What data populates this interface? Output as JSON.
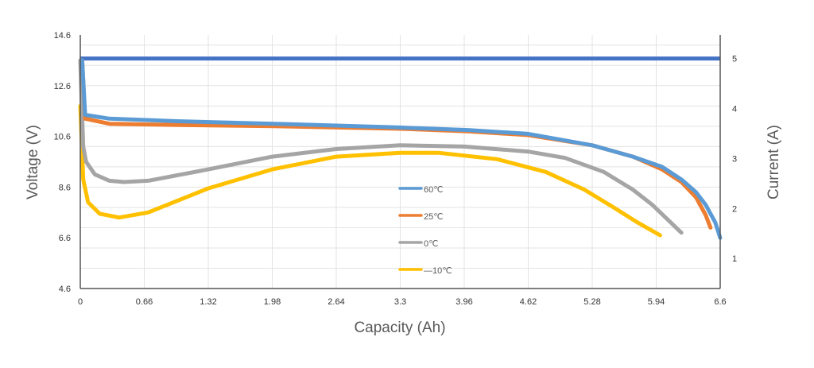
{
  "chart_data": {
    "type": "line",
    "xlabel": "Capacity (Ah)",
    "ylabel": "Voltage (V)",
    "y2label": "Current (A)",
    "xlim": [
      0,
      6.6
    ],
    "ylim": [
      4.6,
      14.6
    ],
    "y2lim": [
      0.4,
      5.47
    ],
    "xticks": [
      "0",
      "0.66",
      "1.32",
      "1.98",
      "2.64",
      "3.3",
      "3.96",
      "4.62",
      "5.28",
      "5.94",
      "6.6"
    ],
    "yticks": [
      "4.6",
      "6.6",
      "8.6",
      "10.6",
      "12.6",
      "14.6"
    ],
    "y2ticks": [
      "1",
      "2",
      "3",
      "4",
      "5"
    ],
    "grid": true,
    "legend_placement": "center",
    "current_line": {
      "color": "#4472C4",
      "x": [
        0,
        6.6
      ],
      "y": [
        5,
        5
      ]
    },
    "series": [
      {
        "name": "60℃",
        "color": "#5B9BD5",
        "x": [
          0.02,
          0.05,
          0.3,
          1.0,
          2.0,
          3.3,
          4.0,
          4.62,
          5.28,
          5.7,
          6.0,
          6.2,
          6.35,
          6.45,
          6.55,
          6.6
        ],
        "y": [
          13.6,
          11.45,
          11.3,
          11.2,
          11.1,
          10.95,
          10.85,
          10.7,
          10.25,
          9.8,
          9.4,
          8.9,
          8.4,
          7.9,
          7.2,
          6.6
        ]
      },
      {
        "name": "25℃",
        "color": "#ED7D31",
        "x": [
          0.02,
          0.05,
          0.3,
          1.0,
          2.0,
          3.3,
          4.0,
          4.62,
          5.28,
          5.7,
          6.0,
          6.2,
          6.35,
          6.45,
          6.5
        ],
        "y": [
          13.6,
          11.3,
          11.1,
          11.05,
          11.0,
          10.9,
          10.8,
          10.65,
          10.25,
          9.8,
          9.3,
          8.8,
          8.2,
          7.5,
          7.0
        ]
      },
      {
        "name": "0℃",
        "color": "#A5A5A5",
        "x": [
          0.0,
          0.03,
          0.06,
          0.15,
          0.3,
          0.45,
          0.7,
          1.32,
          1.98,
          2.64,
          3.3,
          3.96,
          4.62,
          5.0,
          5.4,
          5.7,
          5.9,
          6.2
        ],
        "y": [
          13.6,
          10.2,
          9.6,
          9.1,
          8.85,
          8.8,
          8.85,
          9.3,
          9.8,
          10.1,
          10.25,
          10.2,
          10.0,
          9.75,
          9.2,
          8.5,
          7.9,
          6.8
        ]
      },
      {
        "name": "—10℃",
        "color": "#FFC000",
        "x": [
          0.0,
          0.03,
          0.08,
          0.2,
          0.4,
          0.7,
          1.32,
          1.98,
          2.64,
          3.3,
          3.7,
          4.3,
          4.8,
          5.2,
          5.5,
          5.75,
          5.98
        ],
        "y": [
          11.8,
          8.9,
          8.0,
          7.55,
          7.4,
          7.6,
          8.55,
          9.3,
          9.8,
          9.95,
          9.95,
          9.7,
          9.2,
          8.5,
          7.8,
          7.2,
          6.7
        ]
      }
    ]
  }
}
